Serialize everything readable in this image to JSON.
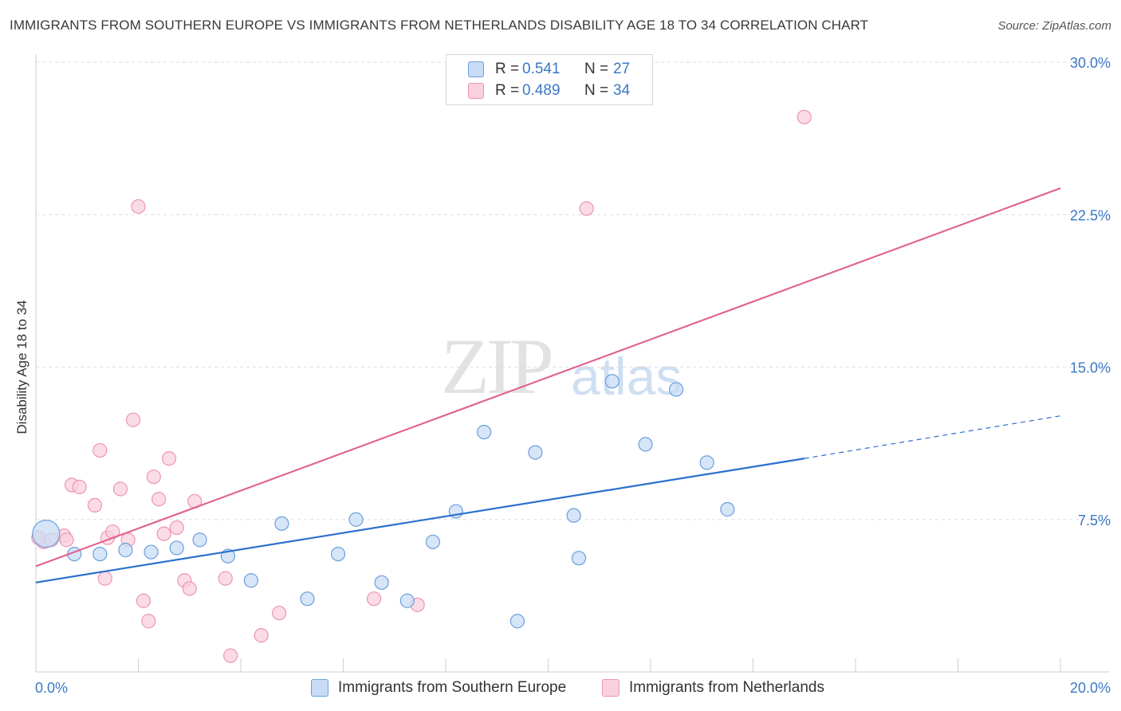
{
  "header": {
    "title": "IMMIGRANTS FROM SOUTHERN EUROPE VS IMMIGRANTS FROM NETHERLANDS DISABILITY AGE 18 TO 34 CORRELATION CHART",
    "source": "Source: ZipAtlas.com"
  },
  "watermark": {
    "zip": "ZIP",
    "atlas": "atlas"
  },
  "legend": {
    "rows": [
      {
        "r_label": "R =",
        "r_value": "0.541",
        "n_label": "N =",
        "n_value": "27",
        "color": "#a9c8ef"
      },
      {
        "r_label": "R =",
        "r_value": "0.489",
        "n_label": "N =",
        "n_value": "34",
        "color": "#f5b8cb"
      }
    ]
  },
  "colors": {
    "blue_fill": "#c9dcf5",
    "blue_stroke": "#6a9fdc",
    "blue_line": "#2a6fcc",
    "pink_fill": "#f9d0dd",
    "pink_stroke": "#ec95b1",
    "pink_line": "#e0628f",
    "tick_text": "#3b78c4",
    "grid": "#dddddd"
  },
  "chart_data": {
    "type": "scatter",
    "title": "IMMIGRANTS FROM SOUTHERN EUROPE VS IMMIGRANTS FROM NETHERLANDS DISABILITY AGE 18 TO 34 CORRELATION CHART",
    "xlabel": "",
    "ylabel": "Disability Age 18 to 34",
    "xlim": [
      0,
      20
    ],
    "ylim": [
      0,
      30
    ],
    "x_tick_labels": [
      "0.0%",
      "20.0%"
    ],
    "y_ticks": [
      7.5,
      15.0,
      22.5,
      30.0
    ],
    "y_tick_labels": [
      "7.5%",
      "15.0%",
      "22.5%",
      "30.0%"
    ],
    "grid": true,
    "legend_position": "top-center",
    "series": [
      {
        "name": "Immigrants from Southern Europe",
        "color": "#6a9fdc",
        "r": 0.541,
        "n": 27,
        "trend": {
          "x": [
            0,
            15.0
          ],
          "y": [
            4.4,
            10.5
          ],
          "dashed_to": [
            20.0,
            12.6
          ]
        },
        "points": [
          [
            0.2,
            6.8
          ],
          [
            0.75,
            5.8
          ],
          [
            1.25,
            5.8
          ],
          [
            1.75,
            6.0
          ],
          [
            2.25,
            5.9
          ],
          [
            2.75,
            6.1
          ],
          [
            3.2,
            6.5
          ],
          [
            3.75,
            5.7
          ],
          [
            4.2,
            4.5
          ],
          [
            4.8,
            7.3
          ],
          [
            5.3,
            3.6
          ],
          [
            5.9,
            5.8
          ],
          [
            6.25,
            7.5
          ],
          [
            6.75,
            4.4
          ],
          [
            7.25,
            3.5
          ],
          [
            7.75,
            6.4
          ],
          [
            8.2,
            7.9
          ],
          [
            8.75,
            11.8
          ],
          [
            9.4,
            2.5
          ],
          [
            9.75,
            10.8
          ],
          [
            10.5,
            7.7
          ],
          [
            10.6,
            5.6
          ],
          [
            11.25,
            14.3
          ],
          [
            11.9,
            11.2
          ],
          [
            12.5,
            13.9
          ],
          [
            13.1,
            10.3
          ],
          [
            13.5,
            8.0
          ]
        ]
      },
      {
        "name": "Immigrants from Netherlands",
        "color": "#ec95b1",
        "r": 0.489,
        "n": 34,
        "trend": {
          "x": [
            0,
            20.0
          ],
          "y": [
            5.2,
            23.8
          ]
        },
        "points": [
          [
            0.15,
            6.4
          ],
          [
            0.3,
            6.5
          ],
          [
            0.55,
            6.7
          ],
          [
            0.6,
            6.5
          ],
          [
            0.7,
            9.2
          ],
          [
            0.85,
            9.1
          ],
          [
            1.15,
            8.2
          ],
          [
            1.25,
            10.9
          ],
          [
            1.35,
            4.6
          ],
          [
            1.4,
            6.6
          ],
          [
            1.5,
            6.9
          ],
          [
            1.65,
            9.0
          ],
          [
            1.8,
            6.5
          ],
          [
            1.9,
            12.4
          ],
          [
            2.0,
            22.9
          ],
          [
            2.1,
            3.5
          ],
          [
            2.2,
            2.5
          ],
          [
            2.3,
            9.6
          ],
          [
            2.4,
            8.5
          ],
          [
            2.5,
            6.8
          ],
          [
            2.6,
            10.5
          ],
          [
            2.75,
            7.1
          ],
          [
            2.9,
            4.5
          ],
          [
            3.0,
            4.1
          ],
          [
            3.1,
            8.4
          ],
          [
            3.7,
            4.6
          ],
          [
            3.8,
            0.8
          ],
          [
            4.4,
            1.8
          ],
          [
            4.75,
            2.9
          ],
          [
            6.6,
            3.6
          ],
          [
            7.45,
            3.3
          ],
          [
            10.75,
            22.8
          ],
          [
            15.0,
            27.3
          ],
          [
            0.05,
            6.6
          ]
        ]
      }
    ]
  }
}
